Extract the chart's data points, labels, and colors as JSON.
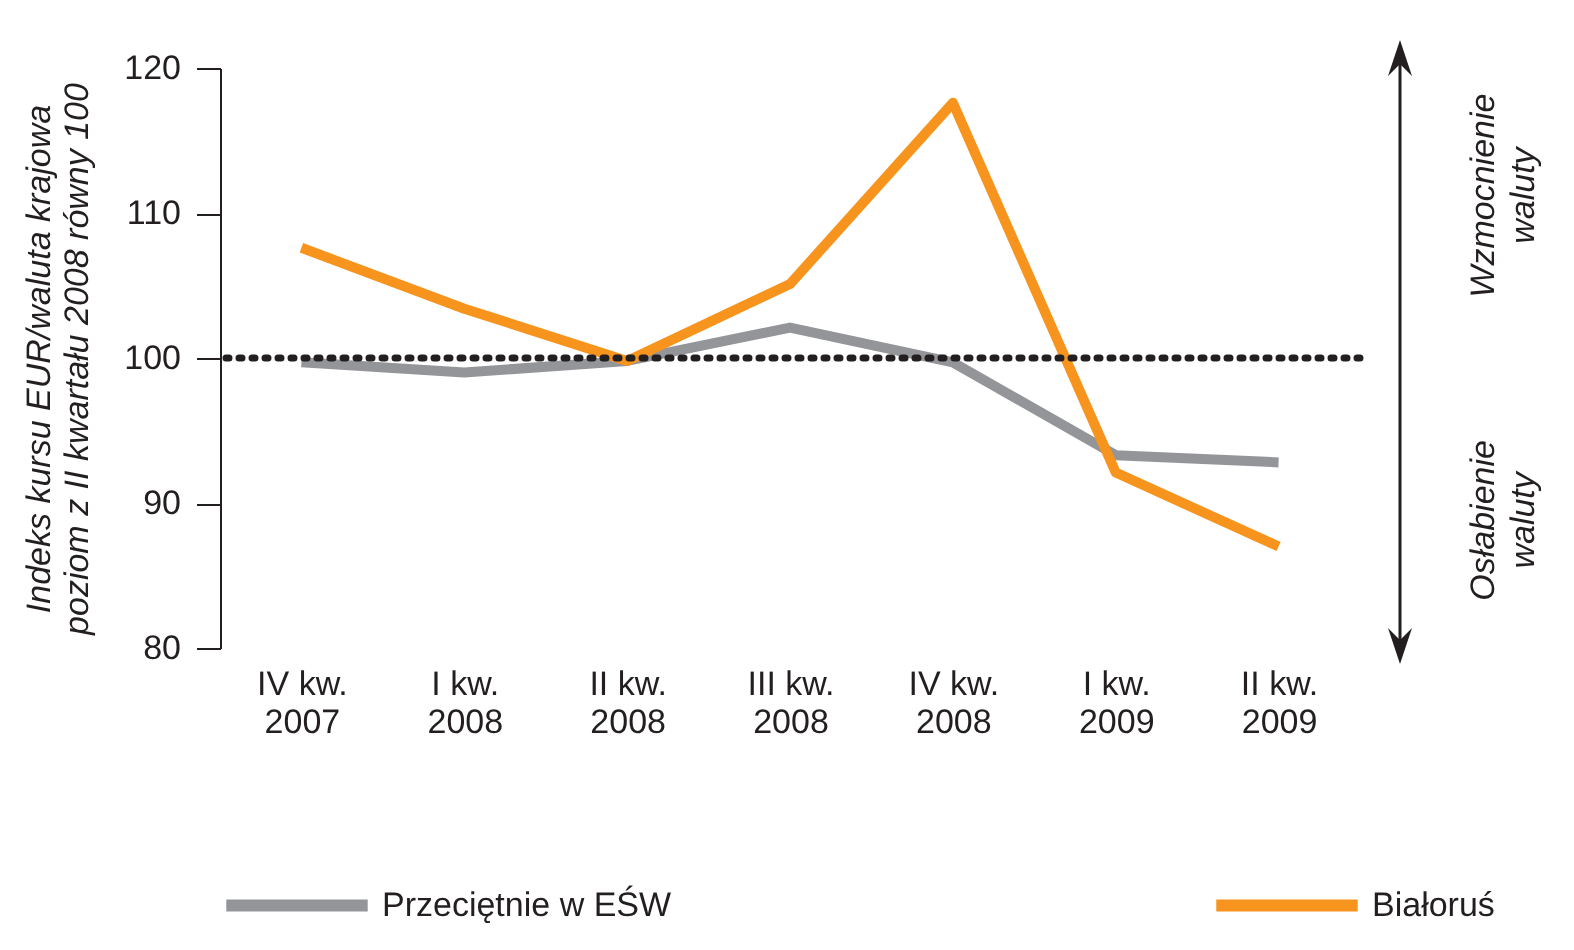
{
  "chart_data": {
    "type": "line",
    "ylabel": "Indeks kursu EUR/waluta krajowa poziom z II kwartału 2008 równy 100",
    "categories": [
      "IV kw. 2007",
      "I kw. 2008",
      "II kw. 2008",
      "III kw. 2008",
      "IV kw. 2008",
      "I kw. 2009",
      "II kw. 2009"
    ],
    "series": [
      {
        "name": "Przeciętnie w EŚW",
        "color": "#939598",
        "values": [
          99.7,
          99.0,
          99.8,
          102.1,
          99.7,
          93.3,
          92.8
        ]
      },
      {
        "name": "Białoruś",
        "color": "#f7941d",
        "values": [
          107.6,
          103.4,
          99.8,
          105.1,
          117.6,
          92.1,
          87.0
        ]
      }
    ],
    "ylim": [
      80,
      120
    ],
    "yticks": [
      80,
      90,
      100,
      110,
      120
    ],
    "grid": false,
    "legend": "bottom",
    "line_style": "solid",
    "marker": "none",
    "ref_lines": [
      {
        "axis": "y",
        "value": 100,
        "label": null,
        "color": "#231f20",
        "line_style": "dotted"
      }
    ],
    "annotations": [
      "Wzmocnienie waluty",
      "Osłabienie waluty"
    ]
  }
}
